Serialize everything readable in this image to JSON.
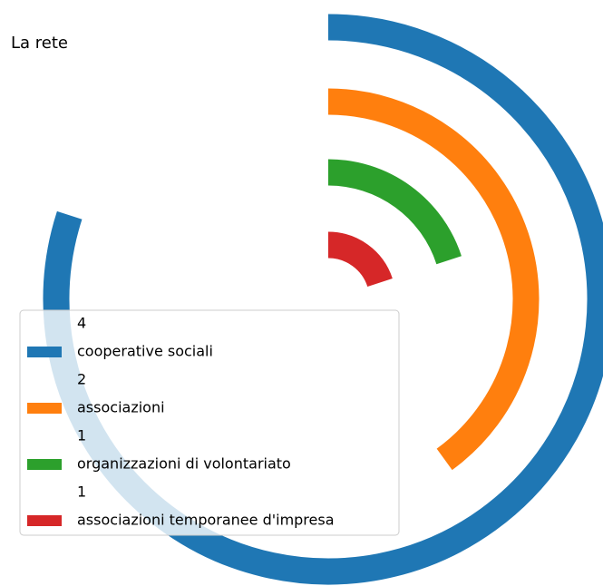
{
  "chart_data": {
    "type": "radial_bar",
    "title": "La rete",
    "categories": [
      "cooperative sociali",
      "associazioni",
      "organizzazioni di volontariato",
      "associazioni temporanee d'impresa"
    ],
    "values": [
      4,
      2,
      1,
      1
    ],
    "colors": [
      "#1f77b4",
      "#ff7f0e",
      "#2ca02c",
      "#d62728"
    ],
    "xlim": [
      0,
      5
    ],
    "legend": "lower left"
  }
}
